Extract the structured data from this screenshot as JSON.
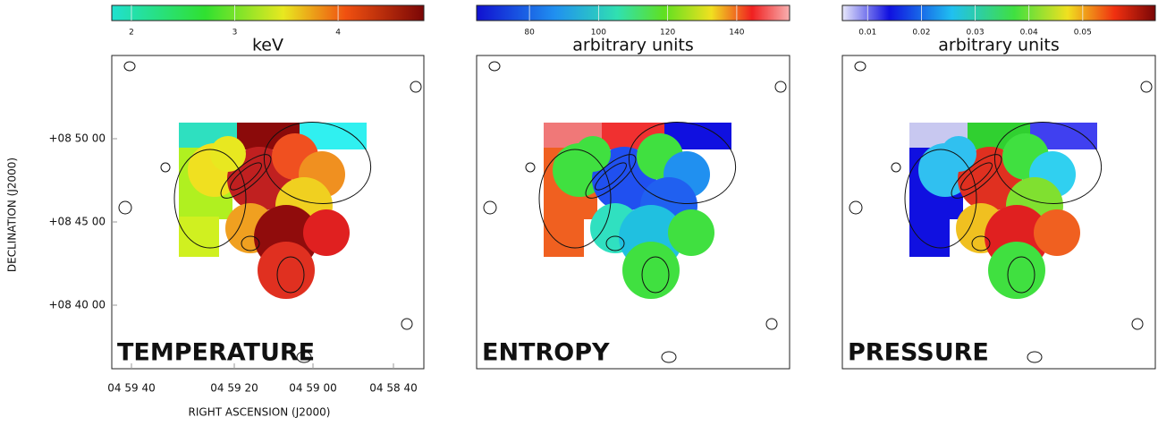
{
  "panels": [
    {
      "label": "TEMPERATURE",
      "colorbar": {
        "label": "keV",
        "lim": [
          1.81,
          4.83
        ],
        "ticks": [
          2,
          3,
          4
        ]
      }
    },
    {
      "label": "ENTROPY",
      "colorbar": {
        "label": "arbitrary units",
        "lim": [
          64.7,
          155.3
        ],
        "ticks": [
          80,
          100,
          120,
          140
        ]
      }
    },
    {
      "label": "PRESSURE",
      "colorbar": {
        "label": "arbitrary units",
        "lim": [
          0.0053,
          0.0635
        ],
        "ticks": [
          0.01,
          0.02,
          0.03,
          0.04,
          0.05
        ]
      }
    }
  ],
  "axes": {
    "x_label": "RIGHT ASCENSION (J2000)",
    "y_label": "DECLINATION (J2000)",
    "xticks": [
      "04 59 40",
      "04 59 20",
      "04 59 00",
      "04 58 40"
    ],
    "yticks": [
      "+08 50 00",
      "+08 45 00",
      "+08 40 00"
    ]
  }
}
